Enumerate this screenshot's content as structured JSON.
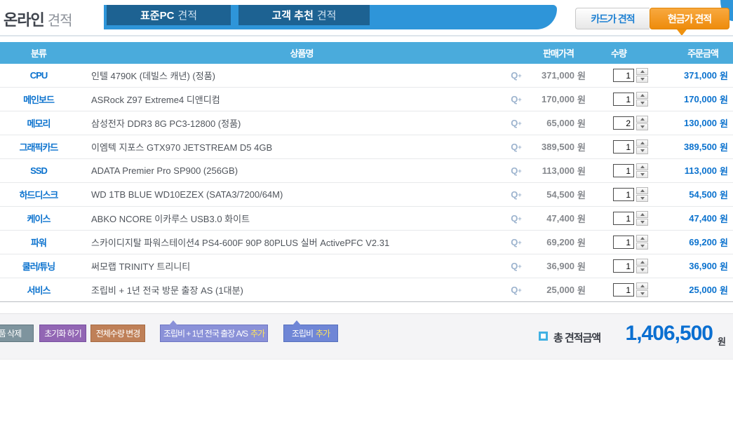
{
  "page": {
    "title_bold": "온라인",
    "title_light": "견적"
  },
  "tabs": [
    {
      "bold": "표준PC",
      "light": "견적"
    },
    {
      "bold": "고객 추천",
      "light": "견적"
    }
  ],
  "price_mode": {
    "card_label": "카드가 견적",
    "cash_label": "현금가 견적"
  },
  "table": {
    "headers": [
      "분류",
      "상품명",
      "판매가격",
      "수량",
      "주문금액"
    ],
    "currency": "원",
    "zoom_icon_letter": "Q",
    "zoom_icon_plus": "+",
    "rows": [
      {
        "category": "CPU",
        "product": "인텔 4790K (데빌스 캐년) (정품)",
        "price": "371,000",
        "qty": "1",
        "amount": "371,000"
      },
      {
        "category": "메인보드",
        "product": "ASRock Z97 Extreme4 디앤디컴",
        "price": "170,000",
        "qty": "1",
        "amount": "170,000"
      },
      {
        "category": "메모리",
        "product": "삼성전자 DDR3 8G PC3-12800 (정품)",
        "price": "65,000",
        "qty": "2",
        "amount": "130,000"
      },
      {
        "category": "그래픽카드",
        "product": "이엠텍 지포스 GTX970 JETSTREAM D5 4GB",
        "price": "389,500",
        "qty": "1",
        "amount": "389,500"
      },
      {
        "category": "SSD",
        "product": "ADATA Premier Pro SP900 (256GB)",
        "price": "113,000",
        "qty": "1",
        "amount": "113,000"
      },
      {
        "category": "하드디스크",
        "product": "WD 1TB BLUE WD10EZEX (SATA3/7200/64M)",
        "price": "54,500",
        "qty": "1",
        "amount": "54,500"
      },
      {
        "category": "케이스",
        "product": "ABKO NCORE 이카루스 USB3.0 화이트",
        "price": "47,400",
        "qty": "1",
        "amount": "47,400"
      },
      {
        "category": "파워",
        "product": "스카이디지탈 파워스테이션4 PS4-600F 90P 80PLUS 실버 ActivePFC V2.31",
        "price": "69,200",
        "qty": "1",
        "amount": "69,200"
      },
      {
        "category": "쿨러/튜닝",
        "product": "써모랩 TRINITY 트리니티",
        "price": "36,900",
        "qty": "1",
        "amount": "36,900"
      },
      {
        "category": "서비스",
        "product": "조립비 + 1년 전국 방문 출장 AS (1대분)",
        "price": "25,000",
        "qty": "1",
        "amount": "25,000"
      }
    ]
  },
  "actions": {
    "delete_label": "상품 삭제",
    "reset_label": "초기화 하기",
    "change_qty_label": "전체수량 변경",
    "add_as_label": "조립비 + 1년 전국 출장 A/S",
    "add_assembly_label": "조립비",
    "add_suffix": "추가"
  },
  "summary": {
    "total_label": "총 견적금액",
    "total_value": "1,406,500",
    "currency": "원"
  },
  "colors": {
    "tab_strip": "#2e95d9",
    "tab_bg": "#1d6292",
    "table_header_bg": "#4aabdc",
    "accent_blue": "#0b72ce",
    "cash_orange": "#ef920f",
    "add_yellow": "#ffe45c"
  }
}
